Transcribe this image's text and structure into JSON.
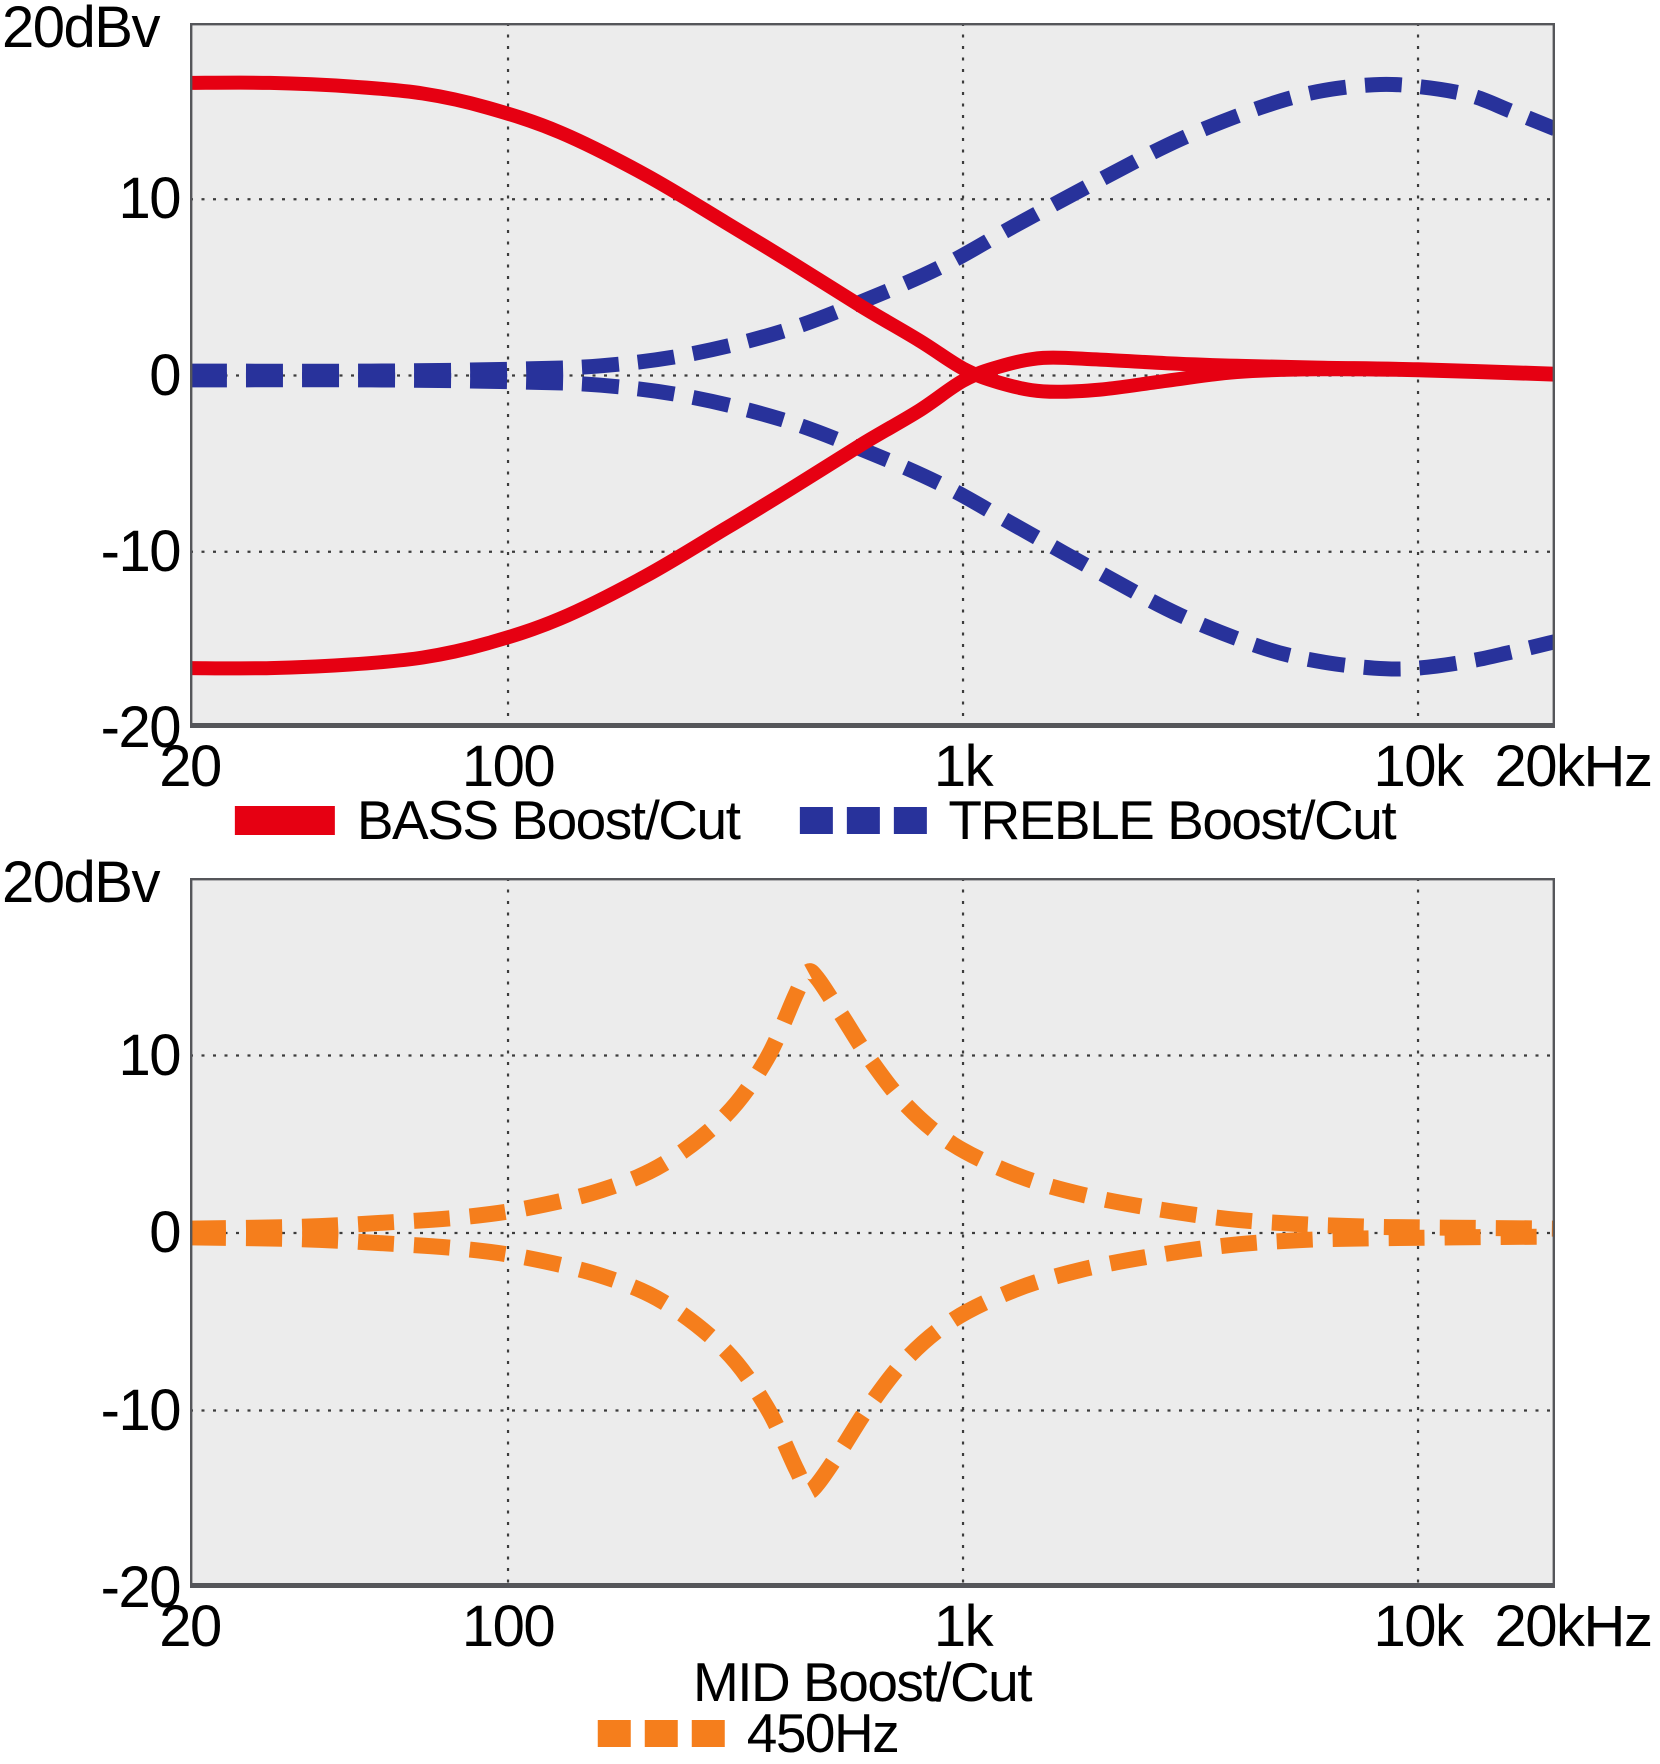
{
  "figure": {
    "description": "Tone control frequency response curves",
    "background_color": "#ffffff",
    "plot_background_color": "#ececec",
    "border_color": "#55565a",
    "grid_color": "#3c3c3c",
    "text_color": "#000000"
  },
  "chart_data": [
    {
      "type": "line",
      "title": "",
      "caption": "",
      "x_axis": {
        "scale": "log",
        "min": 20,
        "max": 20000,
        "unit": "Hz",
        "ticks": [
          {
            "freq": 20,
            "label": "20"
          },
          {
            "freq": 100,
            "label": "100"
          },
          {
            "freq": 1000,
            "label": "1k"
          },
          {
            "freq": 10000,
            "label": "10k"
          },
          {
            "freq": 20000,
            "label": "20kHz"
          }
        ]
      },
      "y_axis": {
        "min": -20,
        "max": 20,
        "unit": "dBv",
        "label": "20dBv",
        "ticks": [
          {
            "value": 10,
            "label": "10"
          },
          {
            "value": 0,
            "label": "0"
          },
          {
            "value": -10,
            "label": "-10"
          },
          {
            "value": -20,
            "label": "-20"
          }
        ]
      },
      "grid": {
        "x": [
          100,
          1000,
          10000
        ],
        "y": [
          10,
          0,
          -10
        ]
      },
      "legend": [
        {
          "label": "BASS Boost/Cut",
          "color": "#E60012",
          "style": "solid"
        },
        {
          "label": "TREBLE Boost/Cut",
          "color": "#28329B",
          "style": "dashed"
        }
      ],
      "series": [
        {
          "name": "TREBLE boost",
          "color": "#28329B",
          "style": "dashed",
          "width": 15,
          "dash": [
            37,
            19
          ],
          "points": [
            [
              20,
              0.25
            ],
            [
              50,
              0.25
            ],
            [
              100,
              0.35
            ],
            [
              160,
              0.55
            ],
            [
              250,
              1.2
            ],
            [
              400,
              2.5
            ],
            [
              600,
              4.2
            ],
            [
              900,
              6.2
            ],
            [
              1300,
              8.5
            ],
            [
              2000,
              11.1
            ],
            [
              3000,
              13.4
            ],
            [
              4500,
              15.2
            ],
            [
              6000,
              16.1
            ],
            [
              8000,
              16.5
            ],
            [
              10000,
              16.4
            ],
            [
              13000,
              15.9
            ],
            [
              16000,
              15.0
            ],
            [
              20000,
              14.0
            ]
          ]
        },
        {
          "name": "TREBLE cut",
          "color": "#28329B",
          "style": "dashed",
          "width": 15,
          "dash": [
            37,
            19
          ],
          "points": [
            [
              20,
              -0.25
            ],
            [
              50,
              -0.25
            ],
            [
              100,
              -0.35
            ],
            [
              160,
              -0.55
            ],
            [
              250,
              -1.2
            ],
            [
              400,
              -2.5
            ],
            [
              600,
              -4.2
            ],
            [
              900,
              -6.2
            ],
            [
              1300,
              -8.5
            ],
            [
              2000,
              -11.2
            ],
            [
              3000,
              -13.6
            ],
            [
              4500,
              -15.4
            ],
            [
              6000,
              -16.2
            ],
            [
              8000,
              -16.6
            ],
            [
              10000,
              -16.6
            ],
            [
              13000,
              -16.2
            ],
            [
              16000,
              -15.7
            ],
            [
              20000,
              -15.1
            ]
          ]
        },
        {
          "name": "BASS boost",
          "color": "#E60012",
          "style": "solid",
          "width": 14,
          "dash": null,
          "points": [
            [
              20,
              16.6
            ],
            [
              30,
              16.6
            ],
            [
              45,
              16.4
            ],
            [
              65,
              16.0
            ],
            [
              90,
              15.2
            ],
            [
              130,
              13.8
            ],
            [
              200,
              11.4
            ],
            [
              300,
              8.7
            ],
            [
              420,
              6.4
            ],
            [
              600,
              3.9
            ],
            [
              800,
              2.0
            ],
            [
              1000,
              0.4
            ],
            [
              1200,
              -0.4
            ],
            [
              1500,
              -0.9
            ],
            [
              2000,
              -0.8
            ],
            [
              2800,
              -0.3
            ],
            [
              4000,
              0.2
            ],
            [
              6000,
              0.35
            ],
            [
              10000,
              0.3
            ],
            [
              20000,
              0.05
            ]
          ]
        },
        {
          "name": "BASS cut",
          "color": "#E60012",
          "style": "solid",
          "width": 14,
          "dash": null,
          "points": [
            [
              20,
              -16.6
            ],
            [
              30,
              -16.6
            ],
            [
              45,
              -16.4
            ],
            [
              65,
              -16.0
            ],
            [
              90,
              -15.2
            ],
            [
              130,
              -13.8
            ],
            [
              200,
              -11.4
            ],
            [
              300,
              -8.7
            ],
            [
              420,
              -6.4
            ],
            [
              600,
              -3.9
            ],
            [
              800,
              -2.0
            ],
            [
              1000,
              -0.3
            ],
            [
              1200,
              0.5
            ],
            [
              1500,
              1.0
            ],
            [
              2000,
              0.9
            ],
            [
              2800,
              0.7
            ],
            [
              4000,
              0.55
            ],
            [
              6000,
              0.45
            ],
            [
              10000,
              0.35
            ],
            [
              20000,
              0.1
            ]
          ]
        }
      ]
    },
    {
      "type": "line",
      "title": "",
      "caption": "MID Boost/Cut",
      "x_axis": {
        "scale": "log",
        "min": 20,
        "max": 20000,
        "unit": "Hz",
        "ticks": [
          {
            "freq": 20,
            "label": "20"
          },
          {
            "freq": 100,
            "label": "100"
          },
          {
            "freq": 1000,
            "label": "1k"
          },
          {
            "freq": 10000,
            "label": "10k"
          },
          {
            "freq": 20000,
            "label": "20kHz"
          }
        ]
      },
      "y_axis": {
        "min": -20,
        "max": 20,
        "unit": "dBv",
        "label": "20dBv",
        "ticks": [
          {
            "value": 10,
            "label": "10"
          },
          {
            "value": 0,
            "label": "0"
          },
          {
            "value": -10,
            "label": "-10"
          },
          {
            "value": -20,
            "label": "-20"
          }
        ]
      },
      "grid": {
        "x": [
          100,
          1000,
          10000
        ],
        "y": [
          10,
          0,
          -10
        ]
      },
      "legend": [
        {
          "label": "450Hz",
          "color": "#F57E1C",
          "style": "dashed"
        }
      ],
      "series": [
        {
          "name": "MID boost 450Hz",
          "color": "#F57E1C",
          "style": "dashed",
          "width": 16,
          "dash": [
            36,
            20
          ],
          "points": [
            [
              20,
              0.25
            ],
            [
              35,
              0.35
            ],
            [
              55,
              0.6
            ],
            [
              80,
              0.9
            ],
            [
              110,
              1.4
            ],
            [
              160,
              2.4
            ],
            [
              220,
              3.9
            ],
            [
              300,
              6.6
            ],
            [
              370,
              9.8
            ],
            [
              430,
              13.5
            ],
            [
              455,
              14.7
            ],
            [
              480,
              14.3
            ],
            [
              540,
              12.3
            ],
            [
              620,
              9.9
            ],
            [
              750,
              7.2
            ],
            [
              950,
              5.0
            ],
            [
              1300,
              3.3
            ],
            [
              1800,
              2.2
            ],
            [
              2600,
              1.4
            ],
            [
              3800,
              0.8
            ],
            [
              5500,
              0.5
            ],
            [
              8000,
              0.35
            ],
            [
              12000,
              0.3
            ],
            [
              20000,
              0.25
            ]
          ]
        },
        {
          "name": "MID cut 450Hz",
          "color": "#F57E1C",
          "style": "dashed",
          "width": 16,
          "dash": [
            36,
            20
          ],
          "points": [
            [
              20,
              -0.25
            ],
            [
              35,
              -0.35
            ],
            [
              55,
              -0.6
            ],
            [
              80,
              -0.9
            ],
            [
              110,
              -1.4
            ],
            [
              160,
              -2.4
            ],
            [
              220,
              -3.9
            ],
            [
              300,
              -6.6
            ],
            [
              370,
              -9.8
            ],
            [
              430,
              -13.3
            ],
            [
              455,
              -14.5
            ],
            [
              480,
              -14.1
            ],
            [
              540,
              -12.2
            ],
            [
              620,
              -9.8
            ],
            [
              750,
              -7.1
            ],
            [
              950,
              -4.9
            ],
            [
              1300,
              -3.2
            ],
            [
              1800,
              -2.1
            ],
            [
              2600,
              -1.3
            ],
            [
              3800,
              -0.7
            ],
            [
              5500,
              -0.4
            ],
            [
              8000,
              -0.3
            ],
            [
              12000,
              -0.25
            ],
            [
              20000,
              -0.2
            ]
          ]
        }
      ]
    }
  ]
}
